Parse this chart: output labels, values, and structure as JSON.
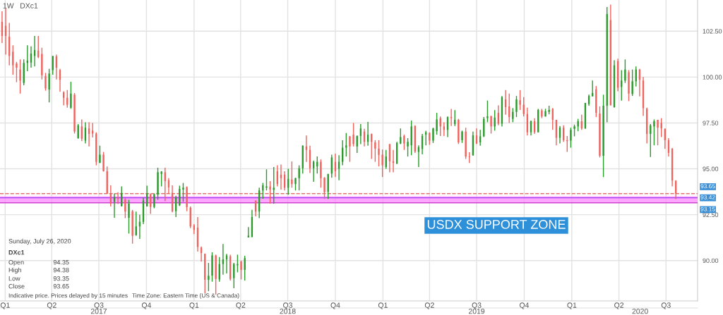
{
  "chart_data": {
    "type": "candlestick",
    "title": "1W   DXc1",
    "x": [
      "2016-12-26",
      "2017-01-02",
      "2017-01-09",
      "2017-01-16",
      "2017-01-23",
      "2017-01-30",
      "2017-02-06",
      "2017-02-13",
      "2017-02-20",
      "2017-02-27",
      "2017-03-06",
      "2017-03-13",
      "2017-03-20",
      "2017-03-27",
      "2017-04-03",
      "2017-04-10",
      "2017-04-17",
      "2017-04-24",
      "2017-05-01",
      "2017-05-08",
      "2017-05-15",
      "2017-05-22",
      "2017-05-29",
      "2017-06-05",
      "2017-06-12",
      "2017-06-19",
      "2017-06-26",
      "2017-07-03",
      "2017-07-10",
      "2017-07-17",
      "2017-07-24",
      "2017-07-31",
      "2017-08-07",
      "2017-08-14",
      "2017-08-21",
      "2017-08-28",
      "2017-09-04",
      "2017-09-11",
      "2017-09-18",
      "2017-09-25",
      "2017-10-02",
      "2017-10-09",
      "2017-10-16",
      "2017-10-23",
      "2017-10-30",
      "2017-11-06",
      "2017-11-13",
      "2017-11-20",
      "2017-11-27",
      "2017-12-04",
      "2017-12-11",
      "2017-12-18",
      "2017-12-25",
      "2018-01-01",
      "2018-01-08",
      "2018-01-15",
      "2018-01-22",
      "2018-01-29",
      "2018-02-05",
      "2018-02-12",
      "2018-02-19",
      "2018-02-26",
      "2018-03-05",
      "2018-03-12",
      "2018-03-19",
      "2018-03-26",
      "2018-04-02",
      "2018-04-09",
      "2018-04-16",
      "2018-04-23",
      "2018-04-30",
      "2018-05-07",
      "2018-05-14",
      "2018-05-21",
      "2018-05-28",
      "2018-06-04",
      "2018-06-11",
      "2018-06-18",
      "2018-06-25",
      "2018-07-02",
      "2018-07-09",
      "2018-07-16",
      "2018-07-23",
      "2018-07-30",
      "2018-08-06",
      "2018-08-13",
      "2018-08-20",
      "2018-08-27",
      "2018-09-03",
      "2018-09-10",
      "2018-09-17",
      "2018-09-24",
      "2018-10-01",
      "2018-10-08",
      "2018-10-15",
      "2018-10-22",
      "2018-10-29",
      "2018-11-05",
      "2018-11-12",
      "2018-11-19",
      "2018-11-26",
      "2018-12-03",
      "2018-12-10",
      "2018-12-17",
      "2018-12-24",
      "2018-12-31",
      "2019-01-07",
      "2019-01-14",
      "2019-01-21",
      "2019-01-28",
      "2019-02-04",
      "2019-02-11",
      "2019-02-18",
      "2019-02-25",
      "2019-03-04",
      "2019-03-11",
      "2019-03-18",
      "2019-03-25",
      "2019-04-01",
      "2019-04-08",
      "2019-04-15",
      "2019-04-22",
      "2019-04-29",
      "2019-05-06",
      "2019-05-13",
      "2019-05-20",
      "2019-05-27",
      "2019-06-03",
      "2019-06-10",
      "2019-06-17",
      "2019-06-24",
      "2019-07-01",
      "2019-07-08",
      "2019-07-15",
      "2019-07-22",
      "2019-07-29",
      "2019-08-05",
      "2019-08-12",
      "2019-08-19",
      "2019-08-26",
      "2019-09-02",
      "2019-09-09",
      "2019-09-16",
      "2019-09-23",
      "2019-09-30",
      "2019-10-07",
      "2019-10-14",
      "2019-10-21",
      "2019-10-28",
      "2019-11-04",
      "2019-11-11",
      "2019-11-18",
      "2019-11-25",
      "2019-12-02",
      "2019-12-09",
      "2019-12-16",
      "2019-12-23",
      "2019-12-30",
      "2020-01-06",
      "2020-01-13",
      "2020-01-20",
      "2020-01-27",
      "2020-02-03",
      "2020-02-10",
      "2020-02-17",
      "2020-02-24",
      "2020-03-02",
      "2020-03-09",
      "2020-03-16",
      "2020-03-23",
      "2020-03-30",
      "2020-04-06",
      "2020-04-13",
      "2020-04-20",
      "2020-04-27",
      "2020-05-04",
      "2020-05-11",
      "2020-05-18",
      "2020-05-25",
      "2020-06-01",
      "2020-06-08",
      "2020-06-15",
      "2020-06-22",
      "2020-06-29",
      "2020-07-06",
      "2020-07-13",
      "2020-07-20"
    ],
    "ohlc": [
      [
        103.01,
        103.59,
        101.86,
        102.24
      ],
      [
        102.79,
        103.74,
        101.22,
        102.24
      ],
      [
        102.2,
        102.95,
        100.64,
        101.15
      ],
      [
        101.38,
        101.73,
        100.13,
        100.64
      ],
      [
        100.74,
        100.83,
        99.72,
        100.51
      ],
      [
        100.41,
        100.96,
        99.1,
        99.81
      ],
      [
        99.68,
        100.96,
        99.55,
        100.77
      ],
      [
        100.77,
        101.73,
        100.32,
        100.9
      ],
      [
        100.79,
        101.67,
        100.51,
        101.28
      ],
      [
        101.15,
        102.24,
        100.58,
        101.47
      ],
      [
        101.44,
        102.24,
        101.03,
        101.09
      ],
      [
        101.26,
        101.6,
        99.87,
        100.1
      ],
      [
        100.06,
        100.23,
        99.26,
        99.38
      ],
      [
        99.32,
        100.45,
        98.62,
        100.19
      ],
      [
        100.38,
        101.15,
        100.13,
        101.15
      ],
      [
        101.13,
        101.22,
        99.87,
        100.51
      ],
      [
        100.38,
        100.45,
        99.2,
        99.85
      ],
      [
        99.17,
        99.23,
        98.46,
        98.87
      ],
      [
        98.87,
        99.29,
        98.33,
        98.49
      ],
      [
        98.33,
        99.74,
        98.27,
        99.1
      ],
      [
        99.04,
        99.13,
        96.92,
        97.03
      ],
      [
        96.67,
        97.44,
        96.64,
        97.37
      ],
      [
        97.31,
        97.69,
        96.51,
        96.64
      ],
      [
        96.54,
        97.54,
        96.38,
        97.24
      ],
      [
        97.2,
        97.54,
        96.22,
        96.9
      ],
      [
        97.08,
        97.5,
        96.71,
        96.92
      ],
      [
        96.92,
        96.99,
        95.19,
        95.38
      ],
      [
        95.32,
        96.26,
        95.32,
        95.77
      ],
      [
        95.77,
        95.92,
        94.85,
        94.87
      ],
      [
        94.87,
        95.13,
        93.65,
        93.65
      ],
      [
        93.65,
        94.1,
        92.95,
        93.1
      ],
      [
        93.2,
        93.65,
        92.33,
        93.46
      ],
      [
        93.4,
        93.72,
        93.08,
        93.36
      ],
      [
        92.97,
        94.04,
        92.95,
        93.68
      ],
      [
        93.33,
        93.4,
        92.31,
        92.67
      ],
      [
        92.33,
        93.31,
        91.47,
        93.1
      ],
      [
        92.69,
        92.76,
        90.92,
        91.35
      ],
      [
        91.38,
        92.67,
        91.35,
        91.86
      ],
      [
        91.86,
        92.5,
        91.18,
        92.11
      ],
      [
        92.11,
        93.43,
        91.99,
        93.27
      ],
      [
        92.95,
        94.08,
        92.95,
        93.65
      ],
      [
        93.61,
        93.65,
        92.54,
        92.92
      ],
      [
        92.92,
        93.65,
        92.85,
        93.61
      ],
      [
        93.59,
        95.06,
        93.31,
        94.81
      ],
      [
        94.72,
        94.87,
        94.04,
        94.85
      ],
      [
        94.81,
        95.06,
        93.23,
        94.33
      ],
      [
        94.38,
        94.49,
        93.64,
        93.99
      ],
      [
        93.69,
        94.1,
        92.63,
        92.69
      ],
      [
        92.69,
        93.53,
        92.37,
        93.44
      ],
      [
        93.01,
        94.08,
        92.97,
        93.91
      ],
      [
        93.87,
        94.23,
        93.2,
        93.97
      ],
      [
        94.0,
        94.04,
        92.69,
        92.91
      ],
      [
        92.88,
        92.95,
        91.77,
        91.86
      ],
      [
        91.92,
        91.99,
        91.44,
        91.67
      ],
      [
        91.79,
        92.37,
        90.49,
        90.74
      ],
      [
        90.71,
        90.77,
        89.94,
        90.41
      ],
      [
        90.36,
        90.38,
        88.21,
        88.95
      ],
      [
        88.95,
        89.87,
        88.33,
        89.17
      ],
      [
        89.18,
        90.45,
        88.85,
        90.28
      ],
      [
        90.28,
        90.32,
        88.14,
        89.0
      ],
      [
        88.97,
        90.19,
        88.85,
        89.81
      ],
      [
        89.81,
        90.9,
        89.23,
        90.06
      ],
      [
        90.06,
        90.36,
        89.3,
        90.28
      ],
      [
        90.23,
        90.32,
        88.91,
        89.0
      ],
      [
        89.04,
        89.87,
        88.49,
        89.81
      ],
      [
        89.74,
        90.32,
        89.36,
        89.81
      ],
      [
        89.94,
        90.0,
        88.97,
        89.49
      ],
      [
        89.49,
        90.26,
        88.91,
        90.13
      ],
      [
        91.26,
        91.82,
        91.26,
        91.35
      ],
      [
        91.28,
        92.76,
        91.28,
        92.37
      ],
      [
        93.27,
        93.27,
        92.41,
        92.67
      ],
      [
        92.67,
        93.97,
        92.31,
        93.82
      ],
      [
        93.82,
        94.23,
        93.37,
        94.1
      ],
      [
        93.97,
        94.97,
        93.82,
        94.04
      ],
      [
        94.04,
        94.33,
        93.1,
        93.87
      ],
      [
        93.85,
        95.1,
        93.1,
        93.97
      ],
      [
        94.87,
        95.19,
        94.04,
        94.17
      ],
      [
        94.68,
        95.23,
        93.87,
        94.49
      ],
      [
        94.68,
        94.87,
        93.82,
        93.97
      ],
      [
        93.97,
        95.0,
        93.59,
        94.45
      ],
      [
        94.41,
        95.4,
        93.97,
        94.17
      ],
      [
        94.17,
        94.51,
        93.82,
        94.49
      ],
      [
        94.49,
        95.19,
        93.82,
        95.03
      ],
      [
        95.03,
        96.28,
        94.74,
        96.26
      ],
      [
        96.22,
        96.82,
        95.38,
        96.03
      ],
      [
        96.03,
        96.26,
        94.77,
        95.03
      ],
      [
        95.03,
        95.45,
        94.29,
        95.38
      ],
      [
        95.13,
        95.67,
        94.74,
        95.38
      ],
      [
        95.38,
        95.51,
        93.97,
        94.49
      ],
      [
        94.51,
        94.55,
        93.36,
        93.72
      ],
      [
        93.74,
        94.72,
        93.36,
        94.72
      ],
      [
        94.74,
        95.77,
        94.51,
        95.62
      ],
      [
        95.38,
        95.83,
        94.55,
        94.87
      ],
      [
        95.0,
        95.74,
        94.38,
        95.38
      ],
      [
        95.38,
        96.56,
        95.19,
        96.15
      ],
      [
        96.15,
        96.95,
        95.67,
        96.28
      ],
      [
        96.77,
        96.79,
        95.38,
        96.22
      ],
      [
        96.86,
        97.5,
        96.22,
        96.35
      ],
      [
        96.22,
        96.82,
        95.87,
        96.79
      ],
      [
        96.79,
        97.44,
        96.35,
        97.2
      ],
      [
        97.03,
        97.18,
        96.22,
        96.47
      ],
      [
        96.47,
        97.56,
        96.26,
        96.86
      ],
      [
        96.9,
        96.92,
        95.54,
        96.47
      ],
      [
        96.44,
        96.56,
        95.38,
        96.1
      ],
      [
        96.1,
        96.56,
        95.13,
        95.76
      ],
      [
        95.77,
        96.05,
        94.55,
        95.19
      ],
      [
        95.1,
        96.03,
        95.0,
        95.67
      ],
      [
        96.35,
        96.35,
        94.81,
        95.41
      ],
      [
        95.41,
        96.03,
        94.81,
        95.32
      ],
      [
        95.28,
        96.47,
        95.26,
        96.41
      ],
      [
        96.38,
        97.2,
        96.35,
        96.73
      ],
      [
        96.79,
        96.86,
        96.03,
        96.38
      ],
      [
        96.22,
        96.67,
        95.67,
        96.47
      ],
      [
        96.28,
        97.63,
        95.74,
        97.31
      ],
      [
        97.33,
        97.37,
        95.87,
        95.94
      ],
      [
        95.92,
        96.28,
        95.1,
        96.18
      ],
      [
        96.08,
        96.9,
        95.79,
        96.79
      ],
      [
        96.86,
        97.08,
        96.28,
        96.99
      ],
      [
        96.95,
        96.99,
        96.31,
        96.54
      ],
      [
        96.54,
        97.24,
        96.41,
        97.2
      ],
      [
        97.05,
        98.05,
        96.86,
        97.69
      ],
      [
        97.76,
        97.85,
        96.79,
        97.31
      ],
      [
        97.31,
        97.54,
        96.79,
        97.12
      ],
      [
        97.12,
        97.85,
        96.73,
        97.82
      ],
      [
        97.82,
        98.27,
        97.33,
        97.76
      ],
      [
        97.44,
        98.2,
        97.33,
        97.67
      ],
      [
        97.67,
        97.72,
        96.35,
        96.44
      ],
      [
        96.56,
        97.08,
        96.41,
        97.03
      ],
      [
        97.03,
        97.24,
        95.54,
        95.67
      ],
      [
        95.67,
        95.9,
        95.32,
        95.64
      ],
      [
        95.74,
        97.03,
        95.71,
        96.82
      ],
      [
        96.82,
        97.2,
        96.35,
        96.38
      ],
      [
        96.44,
        97.12,
        96.26,
        96.77
      ],
      [
        96.77,
        97.82,
        96.73,
        97.72
      ],
      [
        97.76,
        98.72,
        97.54,
        97.86
      ],
      [
        97.88,
        97.88,
        96.92,
        97.31
      ],
      [
        97.31,
        98.2,
        97.08,
        97.79
      ],
      [
        98.05,
        98.46,
        97.37,
        97.46
      ],
      [
        97.46,
        98.97,
        97.31,
        98.91
      ],
      [
        98.78,
        99.29,
        97.95,
        98.36
      ],
      [
        98.4,
        99.1,
        97.5,
        97.82
      ],
      [
        97.72,
        98.31,
        97.54,
        98.1
      ],
      [
        98.1,
        98.97,
        97.82,
        98.78
      ],
      [
        98.74,
        99.29,
        98.21,
        98.49
      ],
      [
        98.49,
        98.91,
        97.85,
        97.99
      ],
      [
        97.99,
        98.33,
        96.82,
        96.99
      ],
      [
        96.99,
        97.63,
        96.82,
        97.59
      ],
      [
        97.59,
        97.76,
        96.9,
        96.99
      ],
      [
        96.99,
        98.27,
        96.99,
        98.21
      ],
      [
        98.18,
        98.27,
        97.76,
        97.85
      ],
      [
        97.85,
        98.27,
        97.85,
        98.14
      ],
      [
        98.1,
        98.44,
        97.97,
        98.21
      ],
      [
        98.27,
        98.31,
        97.12,
        97.67
      ],
      [
        97.67,
        97.67,
        96.28,
        96.69
      ],
      [
        96.69,
        97.33,
        96.38,
        97.24
      ],
      [
        97.24,
        97.37,
        96.47,
        96.56
      ],
      [
        96.56,
        96.79,
        95.92,
        96.51
      ],
      [
        96.54,
        97.24,
        96.15,
        97.12
      ],
      [
        97.18,
        97.41,
        96.77,
        97.31
      ],
      [
        97.31,
        97.72,
        97.05,
        97.59
      ],
      [
        97.59,
        97.95,
        97.12,
        97.2
      ],
      [
        97.2,
        98.59,
        97.18,
        98.59
      ],
      [
        98.53,
        99.04,
        98.44,
        98.97
      ],
      [
        98.95,
        99.81,
        98.95,
        99.13
      ],
      [
        99.33,
        99.51,
        97.82,
        98.05
      ],
      [
        98.01,
        98.4,
        95.62,
        95.71
      ],
      [
        95.71,
        99.04,
        94.55,
        98.44
      ],
      [
        98.44,
        103.82,
        97.54,
        103.44
      ],
      [
        103.1,
        103.95,
        98.46,
        98.46
      ],
      [
        98.36,
        100.92,
        98.33,
        100.64
      ],
      [
        100.87,
        101.0,
        99.23,
        99.42
      ],
      [
        99.46,
        100.38,
        98.72,
        99.81
      ],
      [
        99.81,
        100.96,
        99.68,
        100.41
      ],
      [
        100.26,
        100.38,
        98.69,
        99.1
      ],
      [
        99.08,
        100.41,
        98.97,
        99.77
      ],
      [
        99.77,
        100.58,
        99.49,
        100.41
      ],
      [
        100.41,
        100.45,
        98.95,
        99.85
      ],
      [
        99.81,
        100.0,
        97.88,
        98.31
      ],
      [
        98.27,
        98.33,
        96.38,
        96.9
      ],
      [
        96.9,
        97.44,
        95.64,
        97.37
      ],
      [
        97.31,
        97.69,
        96.28,
        97.59
      ],
      [
        97.67,
        97.67,
        96.28,
        97.24
      ],
      [
        97.5,
        97.76,
        96.73,
        97.2
      ],
      [
        97.18,
        97.2,
        96.09,
        96.56
      ],
      [
        96.56,
        96.67,
        95.67,
        95.87
      ],
      [
        96.09,
        96.13,
        94.04,
        94.36
      ],
      [
        94.35,
        94.38,
        93.35,
        93.65
      ]
    ],
    "xlim": [
      "2016-12-22",
      "2020-08-31"
    ],
    "xticks": [
      {
        "value": "2017-01-01",
        "label": "Q1"
      },
      {
        "value": "2017-04-01",
        "label": "Q2"
      },
      {
        "value": "2017-07-01",
        "label": "Q3"
      },
      {
        "value": "2017-10-01",
        "label": "Q4"
      },
      {
        "value": "2018-01-01",
        "label": "Q1"
      },
      {
        "value": "2018-04-01",
        "label": "Q2"
      },
      {
        "value": "2018-07-01",
        "label": "Q3"
      },
      {
        "value": "2018-10-01",
        "label": "Q4"
      },
      {
        "value": "2019-01-01",
        "label": "Q1"
      },
      {
        "value": "2019-04-01",
        "label": "Q2"
      },
      {
        "value": "2019-07-01",
        "label": "Q3"
      },
      {
        "value": "2019-10-01",
        "label": "Q4"
      },
      {
        "value": "2020-01-01",
        "label": "Q1"
      },
      {
        "value": "2020-04-01",
        "label": "Q2"
      },
      {
        "value": "2020-07-01",
        "label": "Q3"
      }
    ],
    "x2lim": [
      "2016-12-22",
      "2020-08-31"
    ],
    "x2ticks": [
      {
        "value": "2017-07-01",
        "label": "2017"
      },
      {
        "value": "2018-07-01",
        "label": "2018"
      },
      {
        "value": "2019-07-01",
        "label": "2019"
      },
      {
        "value": "2020-05-12",
        "label": "2020"
      }
    ],
    "ylim": [
      87.8,
      104.2
    ],
    "yticks": [
      {
        "value": 90,
        "label": "90.00"
      },
      {
        "value": 92.5,
        "label": "92.50"
      },
      {
        "value": 95,
        "label": "95.00"
      },
      {
        "value": 97.5,
        "label": "97.50"
      },
      {
        "value": 100,
        "label": "100.00"
      },
      {
        "value": 102.5,
        "label": "102.50"
      }
    ],
    "grid": true,
    "bands": [
      {
        "axis": "y",
        "from": 93.15,
        "to": 93.5,
        "color": "#ff80ff"
      }
    ],
    "ref_lines": [
      {
        "axis": "y",
        "value": 93.65,
        "label": "93.65",
        "color": "#e57373",
        "line_style": "dashed"
      },
      {
        "axis": "y",
        "value": 93.42,
        "label": "93.42",
        "color": "#9b40f0",
        "line_style": "solid"
      },
      {
        "axis": "y",
        "value": 93.15,
        "label": "93.15",
        "color": "#d040d0",
        "line_style": "solid"
      }
    ],
    "annotations": [
      "Sunday, July 26, 2020",
      "DXc1",
      "Open",
      "94.35",
      "High",
      "94.38",
      "Low",
      "93.35",
      "Close",
      "93.65",
      "Indicative price. Prices delayed by 15 minutes",
      "Time Zone: Eastern Time (US & Canada)",
      "USDX SUPPORT ZONE"
    ]
  }
}
